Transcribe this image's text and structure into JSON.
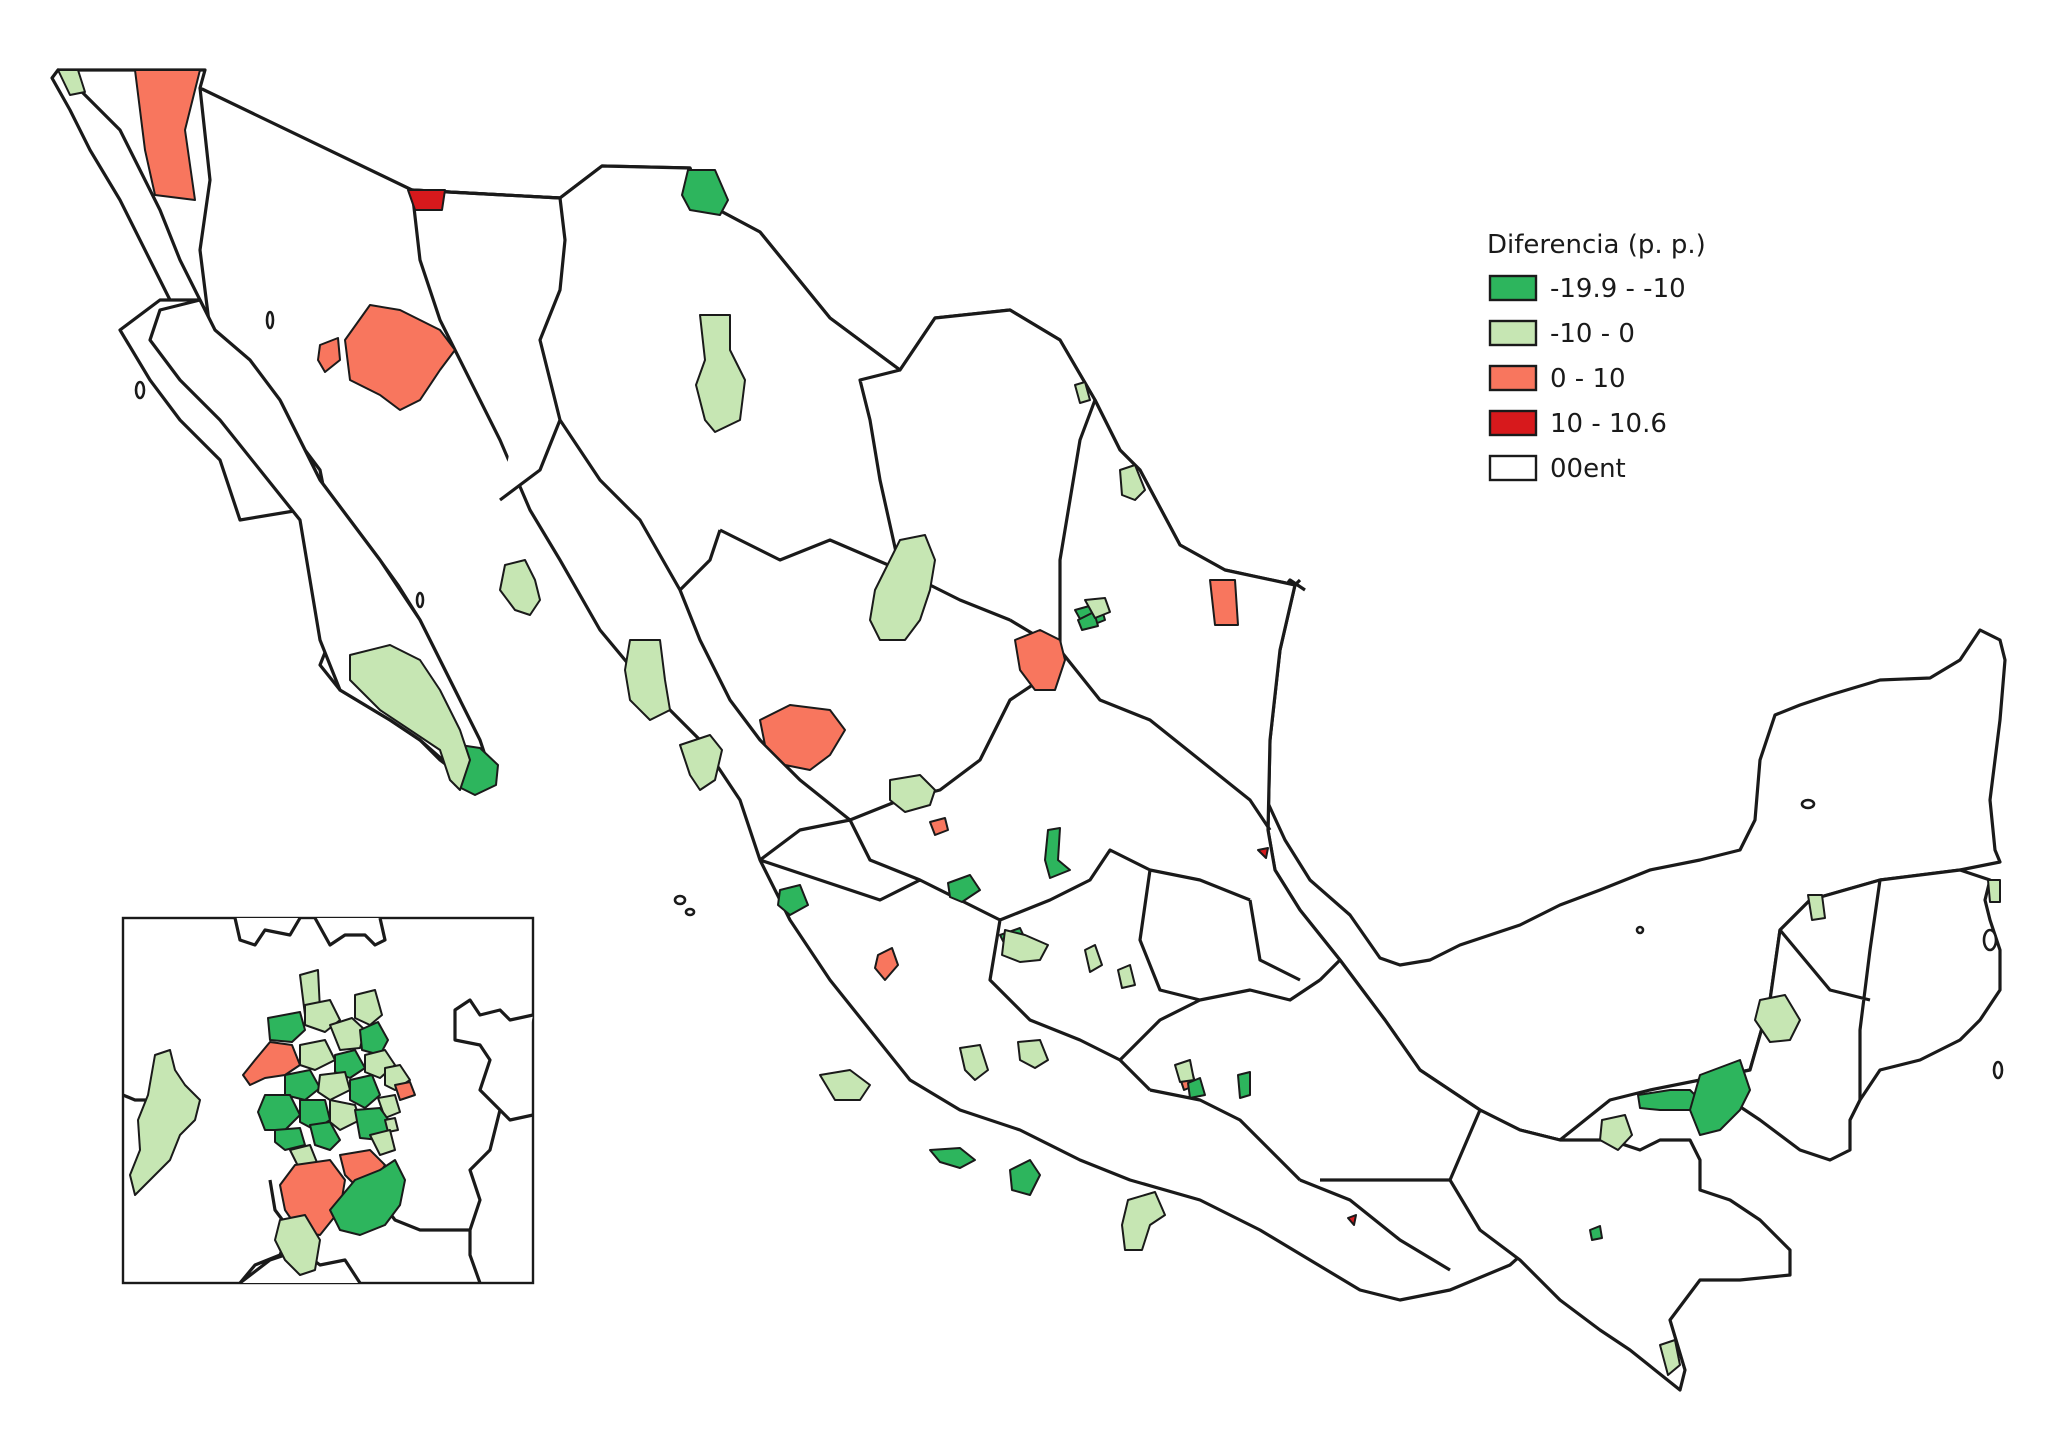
{
  "legend": {
    "title": "Diferencia (p. p.)",
    "classes": [
      {
        "label": "-19.9 - -10",
        "color": "#2db55d"
      },
      {
        "label": "-10 - 0",
        "color": "#c6e6b3"
      },
      {
        "label": "0 - 10",
        "color": "#f8765e"
      },
      {
        "label": "10 - 10.6",
        "color": "#d7191c"
      },
      {
        "label": "00ent",
        "color": "#ffffff"
      }
    ]
  },
  "colors": {
    "boundary": "#1a1a1a",
    "background": "#ffffff"
  }
}
